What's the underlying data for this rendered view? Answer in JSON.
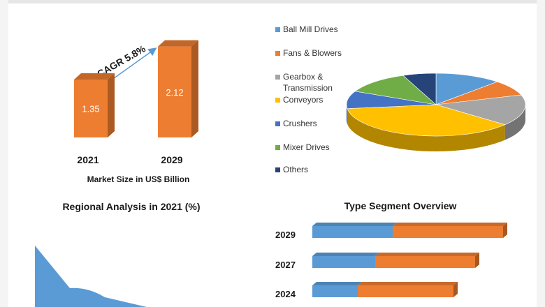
{
  "chart_data": [
    {
      "type": "bar",
      "categories": [
        "2021",
        "2029"
      ],
      "values": [
        1.35,
        2.12
      ],
      "title": "",
      "xlabel": "Market Size in US$ Billion",
      "ylabel": "",
      "annotation": "CAGR 5.8%",
      "color": "#ed7d31"
    },
    {
      "type": "pie",
      "series": [
        {
          "name": "Ball Mill Drives",
          "color": "#5b9bd5",
          "value": 12
        },
        {
          "name": "Fans & Blowers",
          "color": "#ed7d31",
          "value": 8
        },
        {
          "name": "Gearbox & Transmission",
          "color": "#a5a5a5",
          "value": 16
        },
        {
          "name": "Conveyors",
          "color": "#ffc000",
          "value": 37
        },
        {
          "name": "Crushers",
          "color": "#4472c4",
          "value": 9
        },
        {
          "name": "Mixer Drives",
          "color": "#70ad47",
          "value": 12
        },
        {
          "name": "Others",
          "color": "#264478",
          "value": 6
        }
      ]
    },
    {
      "type": "area",
      "title": "Regional Analysis in 2021 (%)",
      "x": [
        0,
        1,
        2,
        3
      ],
      "values": [
        88,
        27,
        14,
        0
      ],
      "color": "#5b9bd5"
    },
    {
      "type": "bar",
      "orientation": "horizontal",
      "stacked": true,
      "title": "Type Segment Overview",
      "categories": [
        "2029",
        "2027",
        "2024"
      ],
      "series": [
        {
          "color": "#5b9bd5",
          "values": [
            115,
            90,
            65
          ]
        },
        {
          "color": "#ed7d31",
          "values": [
            158,
            143,
            137
          ]
        }
      ]
    }
  ]
}
